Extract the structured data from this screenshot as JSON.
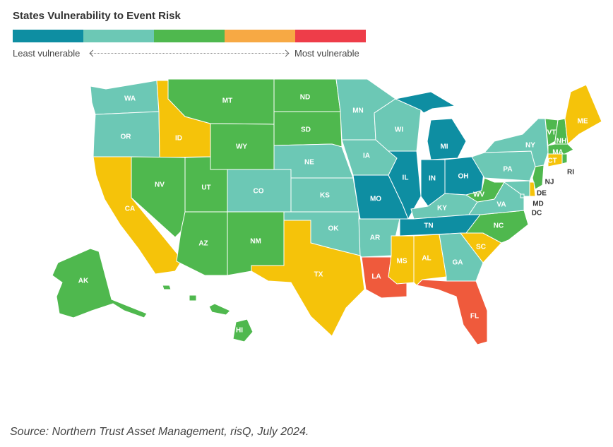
{
  "title": "States Vulnerability to Event Risk",
  "legend": {
    "least_label": "Least vulnerable",
    "most_label": "Most vulnerable",
    "colors": [
      "#0E8EA2",
      "#6CC8B5",
      "#4FB84E",
      "#F7A944",
      "#EE3D49"
    ]
  },
  "tiers": {
    "tier1": "#0E8EA2",
    "tier2": "#6CC8B5",
    "tier3": "#4FB84E",
    "tier4": "#F5C30A",
    "tier5": "#EF5A3C"
  },
  "states": [
    {
      "abbr": "WA",
      "tier": "tier2"
    },
    {
      "abbr": "OR",
      "tier": "tier2"
    },
    {
      "abbr": "CA",
      "tier": "tier4"
    },
    {
      "abbr": "ID",
      "tier": "tier4"
    },
    {
      "abbr": "NV",
      "tier": "tier3"
    },
    {
      "abbr": "MT",
      "tier": "tier3"
    },
    {
      "abbr": "WY",
      "tier": "tier3"
    },
    {
      "abbr": "UT",
      "tier": "tier3"
    },
    {
      "abbr": "AZ",
      "tier": "tier3"
    },
    {
      "abbr": "CO",
      "tier": "tier2"
    },
    {
      "abbr": "NM",
      "tier": "tier3"
    },
    {
      "abbr": "ND",
      "tier": "tier3"
    },
    {
      "abbr": "SD",
      "tier": "tier3"
    },
    {
      "abbr": "NE",
      "tier": "tier2"
    },
    {
      "abbr": "KS",
      "tier": "tier2"
    },
    {
      "abbr": "OK",
      "tier": "tier2"
    },
    {
      "abbr": "TX",
      "tier": "tier4"
    },
    {
      "abbr": "MN",
      "tier": "tier2"
    },
    {
      "abbr": "IA",
      "tier": "tier2"
    },
    {
      "abbr": "MO",
      "tier": "tier1"
    },
    {
      "abbr": "AR",
      "tier": "tier2"
    },
    {
      "abbr": "LA",
      "tier": "tier5"
    },
    {
      "abbr": "WI",
      "tier": "tier2"
    },
    {
      "abbr": "IL",
      "tier": "tier1"
    },
    {
      "abbr": "MI",
      "tier": "tier1"
    },
    {
      "abbr": "IN",
      "tier": "tier1"
    },
    {
      "abbr": "OH",
      "tier": "tier1"
    },
    {
      "abbr": "KY",
      "tier": "tier2"
    },
    {
      "abbr": "TN",
      "tier": "tier1"
    },
    {
      "abbr": "MS",
      "tier": "tier4"
    },
    {
      "abbr": "AL",
      "tier": "tier4"
    },
    {
      "abbr": "GA",
      "tier": "tier2"
    },
    {
      "abbr": "FL",
      "tier": "tier5"
    },
    {
      "abbr": "SC",
      "tier": "tier4"
    },
    {
      "abbr": "NC",
      "tier": "tier3"
    },
    {
      "abbr": "VA",
      "tier": "tier2"
    },
    {
      "abbr": "WV",
      "tier": "tier3"
    },
    {
      "abbr": "PA",
      "tier": "tier2"
    },
    {
      "abbr": "NY",
      "tier": "tier2"
    },
    {
      "abbr": "VT",
      "tier": "tier3"
    },
    {
      "abbr": "NH",
      "tier": "tier3"
    },
    {
      "abbr": "ME",
      "tier": "tier4"
    },
    {
      "abbr": "MA",
      "tier": "tier3"
    },
    {
      "abbr": "CT",
      "tier": "tier4"
    },
    {
      "abbr": "RI",
      "tier": "tier3"
    },
    {
      "abbr": "NJ",
      "tier": "tier3"
    },
    {
      "abbr": "DE",
      "tier": "tier4"
    },
    {
      "abbr": "MD",
      "tier": "tier2"
    },
    {
      "abbr": "DC",
      "tier": "tier2"
    },
    {
      "abbr": "AK",
      "tier": "tier3"
    },
    {
      "abbr": "HI",
      "tier": "tier3"
    }
  ],
  "source": "Source: Northern Trust Asset Management, risQ, July 2024."
}
